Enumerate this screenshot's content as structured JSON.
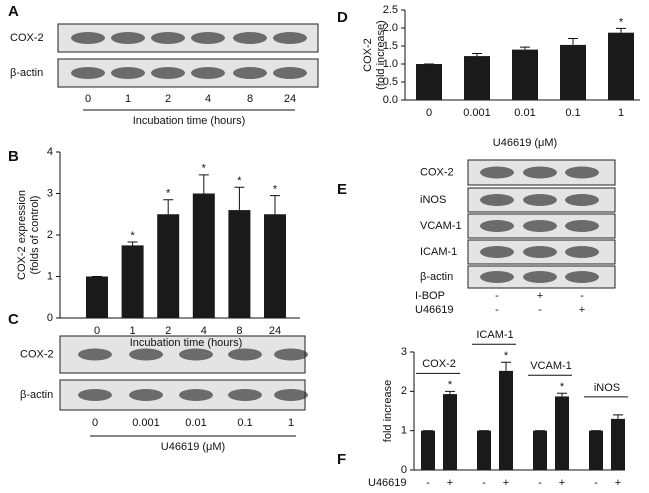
{
  "chart_data": [
    {
      "type": "bar",
      "panel": "B",
      "categories": [
        "0",
        "1",
        "2",
        "4",
        "8",
        "24"
      ],
      "values": [
        1,
        1.75,
        2.5,
        3.0,
        2.6,
        2.5
      ],
      "errors": [
        0,
        0.08,
        0.35,
        0.45,
        0.55,
        0.45
      ],
      "markers": [
        null,
        "*",
        "*",
        "*",
        "*",
        "*"
      ],
      "color": "#1a1a1a",
      "ylim": [
        0,
        4
      ],
      "yticks": [
        0,
        1,
        2,
        3,
        4
      ],
      "ylabel": [
        "COX-2 expression",
        "(folds of control)"
      ],
      "xlabel": "Incubation time (hours)"
    },
    {
      "type": "bar",
      "panel": "D",
      "categories": [
        "0",
        "0.001",
        "0.01",
        "0.1",
        "1"
      ],
      "values": [
        1.0,
        1.22,
        1.4,
        1.53,
        1.87
      ],
      "errors": [
        0,
        0.07,
        0.07,
        0.18,
        0.12
      ],
      "markers": [
        null,
        null,
        null,
        null,
        "*"
      ],
      "color": "#1a1a1a",
      "ylim": [
        0,
        2.5
      ],
      "yticks": [
        {
          "value": 0,
          "label": "0.0"
        },
        0.5,
        {
          "value": 1,
          "label": "1.0"
        },
        1.5,
        {
          "value": 2,
          "label": "2.0"
        },
        2.5
      ],
      "ylabel": [
        "COX-2",
        "(fold increase)"
      ],
      "xlabel": "U46619 (μM)"
    },
    {
      "type": "bar",
      "panel": "F",
      "categories": [
        "-",
        "+",
        "-",
        "+",
        "-",
        "+",
        "-",
        "+"
      ],
      "values": [
        1,
        1.93,
        1,
        2.52,
        1,
        1.87,
        1,
        1.3
      ],
      "errors": [
        0,
        0.07,
        0,
        0.22,
        0,
        0.08,
        0,
        0.1
      ],
      "markers": [
        null,
        "*",
        null,
        "*",
        null,
        "*",
        null,
        null
      ],
      "color": "#1a1a1a",
      "groups": [
        "COX-2",
        "ICAM-1",
        "VCAM-1",
        "iNOS"
      ],
      "ylim": [
        0,
        3
      ],
      "yticks": [
        0,
        1,
        2,
        3
      ],
      "ylabel": [
        "fold increase"
      ],
      "x_row_label": "U46619"
    }
  ],
  "blots": [
    {
      "panel": "A",
      "rows": [
        "COX-2",
        "β-actin"
      ],
      "lanes": [
        "0",
        "1",
        "2",
        "4",
        "8",
        "24"
      ],
      "xlabel": "Incubation time (hours)"
    },
    {
      "panel": "C",
      "rows": [
        "COX-2",
        "β-actin"
      ],
      "lanes": [
        "0",
        "0.001",
        "0.01",
        "0.1",
        "1"
      ],
      "xlabel": "U46619 (μM)"
    },
    {
      "panel": "E",
      "rows": [
        "COX-2",
        "iNOS",
        "VCAM-1",
        "ICAM-1",
        "β-actin"
      ],
      "treatments": [
        {
          "name": "I-BOP",
          "values": [
            "-",
            "+",
            "-"
          ]
        },
        {
          "name": "U46619",
          "values": [
            "-",
            "-",
            "+"
          ]
        }
      ]
    }
  ]
}
